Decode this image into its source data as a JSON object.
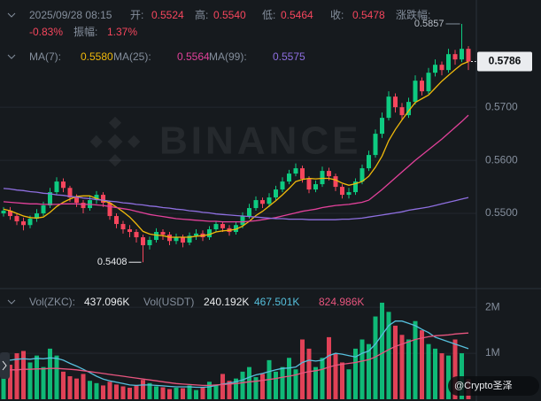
{
  "chart_data": [
    {
      "type": "candlestick",
      "readout": {
        "time": "2025/09/28 08:15",
        "open_label": "开:",
        "open": "0.5524",
        "high_label": "高:",
        "high": "0.5540",
        "low_label": "低:",
        "low": "0.5464",
        "close_label": "收:",
        "close": "0.5478",
        "change_label": "涨跌幅:",
        "change": "-0.83%",
        "amplitude_label": "振幅:",
        "amplitude": "1.37%"
      },
      "watermark": "BINANCE",
      "up_color": "#0ecb81",
      "down_color": "#f6465d",
      "ylim": [
        0.536,
        0.5902
      ],
      "yticks": [
        {
          "value": 0.55,
          "label": "0.5500"
        },
        {
          "value": 0.56,
          "label": "0.5600"
        },
        {
          "value": 0.57,
          "label": "0.5700"
        }
      ],
      "grid": true,
      "open": [
        0.55,
        0.5505,
        0.5495,
        0.5485,
        0.5478,
        0.549,
        0.55,
        0.5515,
        0.554,
        0.556,
        0.5548,
        0.553,
        0.552,
        0.551,
        0.5525,
        0.5535,
        0.552,
        0.5495,
        0.548,
        0.547,
        0.5465,
        0.5455,
        0.544,
        0.545,
        0.5465,
        0.546,
        0.5448,
        0.5455,
        0.5445,
        0.5458,
        0.5462,
        0.5455,
        0.547,
        0.548,
        0.5472,
        0.5465,
        0.5478,
        0.5495,
        0.551,
        0.5525,
        0.5518,
        0.553,
        0.5545,
        0.556,
        0.5575,
        0.5585,
        0.5565,
        0.5545,
        0.5555,
        0.558,
        0.557,
        0.555,
        0.5535,
        0.554,
        0.556,
        0.5585,
        0.561,
        0.565,
        0.568,
        0.572,
        0.57,
        0.5685,
        0.571,
        0.575,
        0.573,
        0.5765,
        0.578,
        0.577,
        0.58,
        0.579,
        0.581
      ],
      "high": [
        0.5512,
        0.5512,
        0.55,
        0.5492,
        0.5496,
        0.5508,
        0.5522,
        0.5548,
        0.5568,
        0.5566,
        0.5552,
        0.5536,
        0.5525,
        0.5532,
        0.5542,
        0.554,
        0.5524,
        0.55,
        0.5486,
        0.5478,
        0.547,
        0.546,
        0.5456,
        0.5472,
        0.547,
        0.5465,
        0.5462,
        0.546,
        0.5464,
        0.547,
        0.5468,
        0.5476,
        0.5486,
        0.5485,
        0.5478,
        0.5484,
        0.5502,
        0.5518,
        0.5532,
        0.553,
        0.5538,
        0.5552,
        0.5568,
        0.5582,
        0.5594,
        0.559,
        0.557,
        0.5562,
        0.5588,
        0.5586,
        0.5575,
        0.5555,
        0.5548,
        0.5566,
        0.5592,
        0.5618,
        0.5658,
        0.569,
        0.573,
        0.5726,
        0.5708,
        0.5718,
        0.576,
        0.5756,
        0.5774,
        0.579,
        0.5786,
        0.581,
        0.5808,
        0.5857,
        0.5815
      ],
      "low": [
        0.5494,
        0.5488,
        0.5478,
        0.5468,
        0.5472,
        0.5484,
        0.5495,
        0.551,
        0.5535,
        0.554,
        0.5522,
        0.5512,
        0.55,
        0.5505,
        0.5518,
        0.5512,
        0.5488,
        0.5472,
        0.5462,
        0.5455,
        0.5445,
        0.5408,
        0.5432,
        0.5445,
        0.545,
        0.544,
        0.5442,
        0.5436,
        0.544,
        0.545,
        0.5448,
        0.545,
        0.5465,
        0.5465,
        0.5458,
        0.546,
        0.5472,
        0.549,
        0.5505,
        0.551,
        0.5512,
        0.5525,
        0.554,
        0.5555,
        0.557,
        0.5558,
        0.5538,
        0.554,
        0.555,
        0.5562,
        0.5542,
        0.5528,
        0.5528,
        0.5535,
        0.5555,
        0.558,
        0.5605,
        0.5642,
        0.5675,
        0.569,
        0.5676,
        0.568,
        0.5705,
        0.5722,
        0.5725,
        0.5758,
        0.576,
        0.5765,
        0.578,
        0.5785,
        0.577
      ],
      "close": [
        0.5505,
        0.5495,
        0.5485,
        0.5478,
        0.549,
        0.55,
        0.5515,
        0.554,
        0.556,
        0.5548,
        0.553,
        0.552,
        0.551,
        0.5525,
        0.5535,
        0.552,
        0.5495,
        0.548,
        0.547,
        0.5465,
        0.5455,
        0.544,
        0.545,
        0.5465,
        0.546,
        0.5448,
        0.5455,
        0.5445,
        0.5458,
        0.5462,
        0.5455,
        0.547,
        0.548,
        0.5472,
        0.5465,
        0.5478,
        0.5495,
        0.551,
        0.5525,
        0.5518,
        0.553,
        0.5545,
        0.556,
        0.5575,
        0.5585,
        0.5565,
        0.5545,
        0.5555,
        0.558,
        0.557,
        0.555,
        0.5535,
        0.554,
        0.556,
        0.5585,
        0.561,
        0.565,
        0.568,
        0.572,
        0.57,
        0.5685,
        0.571,
        0.575,
        0.573,
        0.5765,
        0.578,
        0.577,
        0.58,
        0.579,
        0.581,
        0.5786
      ],
      "series": [
        {
          "name": "MA(7):",
          "legend_value": "0.5580",
          "color": "#f0b90b",
          "values": [
            0.5508,
            0.5505,
            0.55,
            0.5495,
            0.5492,
            0.5491,
            0.5493,
            0.5502,
            0.5513,
            0.5521,
            0.5527,
            0.5532,
            0.5533,
            0.5533,
            0.5528,
            0.5524,
            0.552,
            0.5512,
            0.5503,
            0.5493,
            0.548,
            0.5466,
            0.5461,
            0.5459,
            0.5458,
            0.5455,
            0.5455,
            0.5455,
            0.5455,
            0.5457,
            0.5458,
            0.546,
            0.5465,
            0.5467,
            0.5468,
            0.547,
            0.5476,
            0.5485,
            0.5496,
            0.5504,
            0.5514,
            0.5524,
            0.5535,
            0.5547,
            0.556,
            0.5564,
            0.5566,
            0.5565,
            0.5566,
            0.5566,
            0.5563,
            0.5557,
            0.5553,
            0.5556,
            0.556,
            0.557,
            0.5587,
            0.5608,
            0.5637,
            0.5658,
            0.5676,
            0.5693,
            0.5709,
            0.5716,
            0.5723,
            0.5736,
            0.5749,
            0.576,
            0.5771,
            0.5781,
            0.5786
          ]
        },
        {
          "name": "MA(25):",
          "legend_value": "0.5564",
          "color": "#e2419a",
          "values": [
            0.5522,
            0.5521,
            0.552,
            0.5519,
            0.5518,
            0.5518,
            0.5517,
            0.5517,
            0.5517,
            0.5518,
            0.5518,
            0.5518,
            0.5517,
            0.5517,
            0.5516,
            0.5515,
            0.5513,
            0.5511,
            0.5509,
            0.5507,
            0.5504,
            0.5501,
            0.5498,
            0.5496,
            0.5494,
            0.5492,
            0.549,
            0.5489,
            0.5488,
            0.5487,
            0.5486,
            0.5485,
            0.5485,
            0.5484,
            0.5484,
            0.5484,
            0.5484,
            0.5485,
            0.5486,
            0.5488,
            0.549,
            0.5492,
            0.5495,
            0.5498,
            0.5501,
            0.5504,
            0.5506,
            0.5508,
            0.5511,
            0.5513,
            0.5515,
            0.5516,
            0.5517,
            0.5519,
            0.5521,
            0.5525,
            0.5535,
            0.5545,
            0.5556,
            0.5567,
            0.5578,
            0.5589,
            0.56,
            0.561,
            0.562,
            0.563,
            0.564,
            0.5651,
            0.5662,
            0.5673,
            0.5685
          ]
        },
        {
          "name": "MA(99):",
          "legend_value": "0.5575",
          "color": "#8e6fe0",
          "values": [
            0.5547,
            0.5546,
            0.5544,
            0.5543,
            0.5541,
            0.554,
            0.5538,
            0.5537,
            0.5535,
            0.5534,
            0.5532,
            0.5531,
            0.5529,
            0.5528,
            0.5526,
            0.5525,
            0.5523,
            0.5522,
            0.552,
            0.5519,
            0.5517,
            0.5516,
            0.5514,
            0.5513,
            0.5511,
            0.551,
            0.5508,
            0.5507,
            0.5505,
            0.5504,
            0.5502,
            0.5501,
            0.5499,
            0.5498,
            0.5497,
            0.5496,
            0.5495,
            0.5494,
            0.5493,
            0.5492,
            0.5491,
            0.549,
            0.549,
            0.5489,
            0.5489,
            0.5489,
            0.5488,
            0.5488,
            0.5488,
            0.5488,
            0.5488,
            0.5489,
            0.5489,
            0.549,
            0.5491,
            0.5493,
            0.5495,
            0.5497,
            0.5499,
            0.5501,
            0.5503,
            0.5506,
            0.5508,
            0.551,
            0.5512,
            0.5515,
            0.5518,
            0.5521,
            0.5524,
            0.5527,
            0.553
          ]
        }
      ]
    },
    {
      "type": "bar",
      "name": "Vol(ZKC):",
      "legend_value": "437.096K",
      "quote_name": "Vol(USDT)",
      "quote_legend_value": "240.192K",
      "credit": "@Crypto圣泽",
      "up_color": "#0ecb81",
      "down_color": "#f6465d",
      "ylim": [
        0,
        2330000
      ],
      "yticks": [
        {
          "value": 1000000,
          "label": "1M"
        },
        {
          "value": 2000000,
          "label": "2M"
        }
      ],
      "values": [
        900000,
        750000,
        1000000,
        1050000,
        800000,
        950000,
        700000,
        1100000,
        950000,
        600000,
        500000,
        450000,
        550000,
        400000,
        350000,
        300000,
        380000,
        320000,
        280000,
        250000,
        300000,
        420000,
        350000,
        280000,
        260000,
        220000,
        250000,
        240000,
        300000,
        200000,
        250000,
        380000,
        320000,
        550000,
        400000,
        450000,
        600000,
        700000,
        480000,
        550000,
        850000,
        600000,
        700000,
        900000,
        650000,
        1300000,
        1100000,
        700000,
        900000,
        1350000,
        1000000,
        800000,
        650000,
        1100000,
        1300000,
        1200000,
        1800000,
        2100000,
        1900000,
        1600000,
        1400000,
        1300000,
        1700000,
        1500000,
        1200000,
        1100000,
        1000000,
        950000,
        1300000,
        1000000,
        437096
      ],
      "series": [
        {
          "legend_value": "467.501K",
          "color": "#56bfdc",
          "values": [
            850000,
            850000,
            870000,
            880000,
            870000,
            890000,
            880000,
            900000,
            890000,
            850000,
            780000,
            720000,
            650000,
            580000,
            500000,
            440000,
            400000,
            370000,
            340000,
            310000,
            300000,
            310000,
            310000,
            300000,
            290000,
            280000,
            270000,
            270000,
            270000,
            260000,
            260000,
            270000,
            300000,
            330000,
            350000,
            380000,
            420000,
            480000,
            530000,
            560000,
            600000,
            640000,
            670000,
            680000,
            700000,
            800000,
            850000,
            830000,
            850000,
            950000,
            1000000,
            980000,
            950000,
            920000,
            1000000,
            1050000,
            1200000,
            1400000,
            1600000,
            1700000,
            1700000,
            1650000,
            1600000,
            1520000,
            1450000,
            1350000,
            1300000,
            1250000,
            1200000,
            1150000,
            1100000
          ]
        },
        {
          "legend_value": "824.986K",
          "color": "#e8557f",
          "values": [
            650000,
            640000,
            640000,
            650000,
            650000,
            660000,
            660000,
            670000,
            670000,
            660000,
            650000,
            640000,
            620000,
            600000,
            580000,
            560000,
            540000,
            520000,
            500000,
            480000,
            460000,
            440000,
            420000,
            400000,
            380000,
            360000,
            340000,
            330000,
            320000,
            310000,
            300000,
            300000,
            310000,
            320000,
            330000,
            340000,
            360000,
            380000,
            390000,
            410000,
            430000,
            450000,
            480000,
            500000,
            530000,
            570000,
            600000,
            620000,
            650000,
            700000,
            740000,
            760000,
            780000,
            800000,
            830000,
            860000,
            920000,
            1000000,
            1080000,
            1150000,
            1200000,
            1250000,
            1300000,
            1330000,
            1360000,
            1380000,
            1390000,
            1400000,
            1420000,
            1430000,
            1440000
          ]
        }
      ]
    }
  ]
}
